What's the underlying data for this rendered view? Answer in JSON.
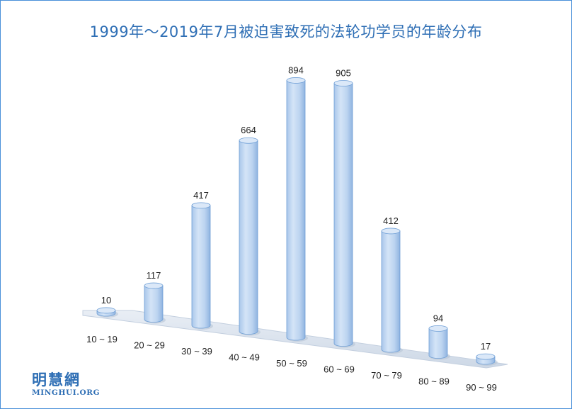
{
  "chart_data": {
    "type": "bar",
    "title": "1999年～2019年7月被迫害致死的法轮功学员的年龄分布",
    "categories": [
      "10 ~ 19",
      "20 ~ 29",
      "30 ~ 39",
      "40 ~ 49",
      "50 ~ 59",
      "60 ~ 69",
      "70 ~ 79",
      "80 ~ 89",
      "90 ~ 99"
    ],
    "values": [
      10,
      117,
      417,
      664,
      894,
      905,
      412,
      94,
      17
    ],
    "xlabel": "",
    "ylabel": "",
    "ylim": [
      0,
      905
    ],
    "grid": false,
    "legend": "none",
    "bar_color": "#b9d3f0",
    "bar_edge_color": "#6f9fd6",
    "floor_color": "#dfe6ef"
  },
  "logo": {
    "cn": "明慧網",
    "en": "MINGHUI.ORG"
  },
  "colors": {
    "frame": "#4a90d9",
    "title": "#2f6fb5"
  }
}
